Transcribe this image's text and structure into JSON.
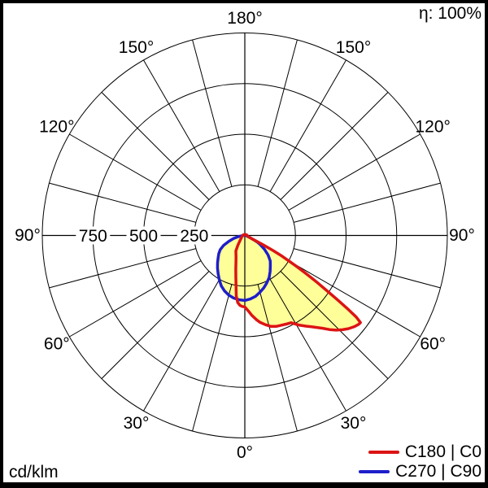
{
  "header": {
    "efficiency": "η: 100%"
  },
  "footer": {
    "unit": "cd/klm"
  },
  "legend": {
    "items": [
      {
        "label": "C180 | C0",
        "color": "#dc1414"
      },
      {
        "label": "C270 | C90",
        "color": "#1e1ecb"
      }
    ]
  },
  "chart_data": {
    "type": "line",
    "polar": true,
    "title": "",
    "unit": "cd/klm",
    "efficiency": "η: 100%",
    "rmax": 1000,
    "radial_gridlines": [
      250,
      500,
      750,
      1000
    ],
    "radial_tick_labels": [
      {
        "value": 750,
        "label": "750"
      },
      {
        "value": 500,
        "label": "500"
      },
      {
        "value": 250,
        "label": "250"
      }
    ],
    "angle_gridline_step_deg": 15,
    "angle_labels": [
      {
        "angle": 180,
        "label": "180°"
      },
      {
        "angle": -150,
        "label": "150°"
      },
      {
        "angle": 150,
        "label": "150°"
      },
      {
        "angle": -120,
        "label": "120°"
      },
      {
        "angle": 120,
        "label": "120°"
      },
      {
        "angle": -90,
        "label": "90°"
      },
      {
        "angle": 90,
        "label": "90°"
      },
      {
        "angle": -60,
        "label": "60°"
      },
      {
        "angle": 60,
        "label": "60°"
      },
      {
        "angle": -30,
        "label": "30°"
      },
      {
        "angle": 30,
        "label": "30°"
      },
      {
        "angle": 0,
        "label": "0°"
      }
    ],
    "fill_color": "#ffff99",
    "grid_color": "#000000",
    "series": [
      {
        "name": "C180 | C0",
        "color": "#dc1414",
        "points": [
          [
            -180,
            3
          ],
          [
            -160,
            4
          ],
          [
            -140,
            5
          ],
          [
            -120,
            7
          ],
          [
            -100,
            9
          ],
          [
            -90,
            10
          ],
          [
            -80,
            12
          ],
          [
            -70,
            15
          ],
          [
            -60,
            18
          ],
          [
            -55,
            21
          ],
          [
            -50,
            25
          ],
          [
            -45,
            32
          ],
          [
            -40,
            42
          ],
          [
            -35,
            60
          ],
          [
            -30,
            88
          ],
          [
            -26,
            100
          ],
          [
            -22,
            116
          ],
          [
            -18,
            142
          ],
          [
            -15,
            172
          ],
          [
            -12,
            212
          ],
          [
            -10,
            250
          ],
          [
            -8,
            302
          ],
          [
            -6,
            333
          ],
          [
            -4,
            346
          ],
          [
            -2,
            351
          ],
          [
            0,
            353
          ],
          [
            3,
            376
          ],
          [
            5,
            396
          ],
          [
            8,
            421
          ],
          [
            10,
            436
          ],
          [
            13,
            452
          ],
          [
            16,
            467
          ],
          [
            19,
            475
          ],
          [
            22,
            478
          ],
          [
            25,
            483
          ],
          [
            28,
            488
          ],
          [
            31,
            516
          ],
          [
            34,
            540
          ],
          [
            37,
            566
          ],
          [
            40,
            598
          ],
          [
            42,
            625
          ],
          [
            44,
            650
          ],
          [
            46,
            670
          ],
          [
            48,
            688
          ],
          [
            50,
            702
          ],
          [
            51,
            708
          ],
          [
            52,
            713
          ],
          [
            53,
            715
          ],
          [
            53.8,
            682
          ],
          [
            54.5,
            622
          ],
          [
            55.2,
            562
          ],
          [
            56,
            492
          ],
          [
            57,
            426
          ],
          [
            58,
            362
          ],
          [
            59,
            302
          ],
          [
            60,
            252
          ],
          [
            61,
            210
          ],
          [
            62,
            158
          ],
          [
            63,
            100
          ],
          [
            64,
            58
          ],
          [
            65,
            36
          ],
          [
            66,
            28
          ],
          [
            68,
            22
          ],
          [
            70,
            18
          ],
          [
            75,
            15
          ],
          [
            80,
            13
          ],
          [
            90,
            12
          ],
          [
            105,
            10
          ],
          [
            120,
            8
          ],
          [
            135,
            6
          ],
          [
            150,
            5
          ],
          [
            165,
            4
          ],
          [
            180,
            3
          ]
        ]
      },
      {
        "name": "C270 | C90",
        "color": "#1e1ecb",
        "points": [
          [
            -180,
            1
          ],
          [
            -150,
            2
          ],
          [
            -120,
            3
          ],
          [
            -100,
            4
          ],
          [
            -90,
            6
          ],
          [
            -85,
            14
          ],
          [
            -80,
            32
          ],
          [
            -75,
            58
          ],
          [
            -70,
            84
          ],
          [
            -65,
            115
          ],
          [
            -60,
            140
          ],
          [
            -55,
            157
          ],
          [
            -50,
            172
          ],
          [
            -45,
            190
          ],
          [
            -40,
            210
          ],
          [
            -35,
            230
          ],
          [
            -30,
            252
          ],
          [
            -25,
            275
          ],
          [
            -20,
            292
          ],
          [
            -15,
            305
          ],
          [
            -10,
            314
          ],
          [
            -5,
            319
          ],
          [
            0,
            321
          ],
          [
            5,
            315
          ],
          [
            10,
            305
          ],
          [
            15,
            290
          ],
          [
            20,
            275
          ],
          [
            25,
            258
          ],
          [
            30,
            240
          ],
          [
            35,
            218
          ],
          [
            40,
            196
          ],
          [
            45,
            178
          ],
          [
            50,
            150
          ],
          [
            55,
            118
          ],
          [
            58,
            96
          ],
          [
            60,
            85
          ],
          [
            62,
            70
          ],
          [
            64,
            50
          ],
          [
            66,
            32
          ],
          [
            68,
            22
          ],
          [
            70,
            15
          ],
          [
            75,
            10
          ],
          [
            80,
            7
          ],
          [
            90,
            5
          ],
          [
            120,
            3
          ],
          [
            150,
            2
          ],
          [
            180,
            1
          ]
        ]
      }
    ]
  }
}
